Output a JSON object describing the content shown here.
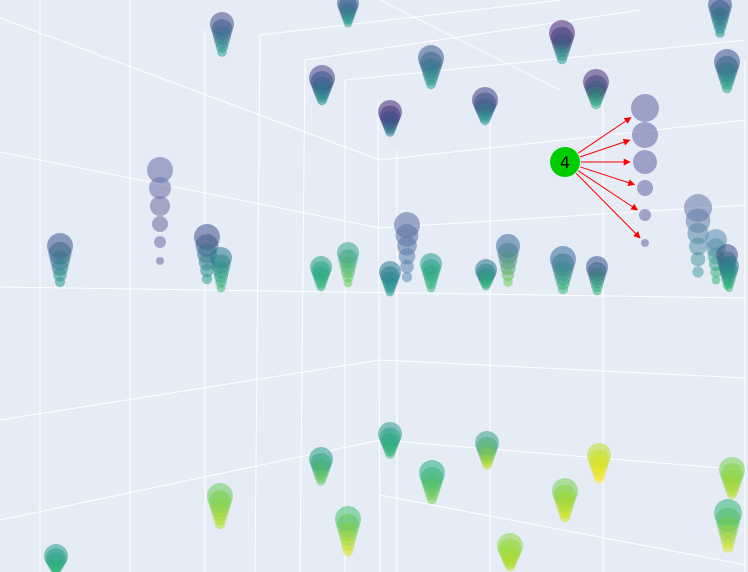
{
  "chart_data": {
    "type": "scatter3d",
    "title": "",
    "marker_colorscale": "viridis",
    "marker_opacity": "semi-transparent",
    "grid": true,
    "background_color": "#e5ecf6",
    "gridline_color": "#ffffff",
    "annotation": {
      "text": "4",
      "fill_color": "#00cc00",
      "arrow_color": "#ff0000",
      "arrow_count": 6
    }
  }
}
